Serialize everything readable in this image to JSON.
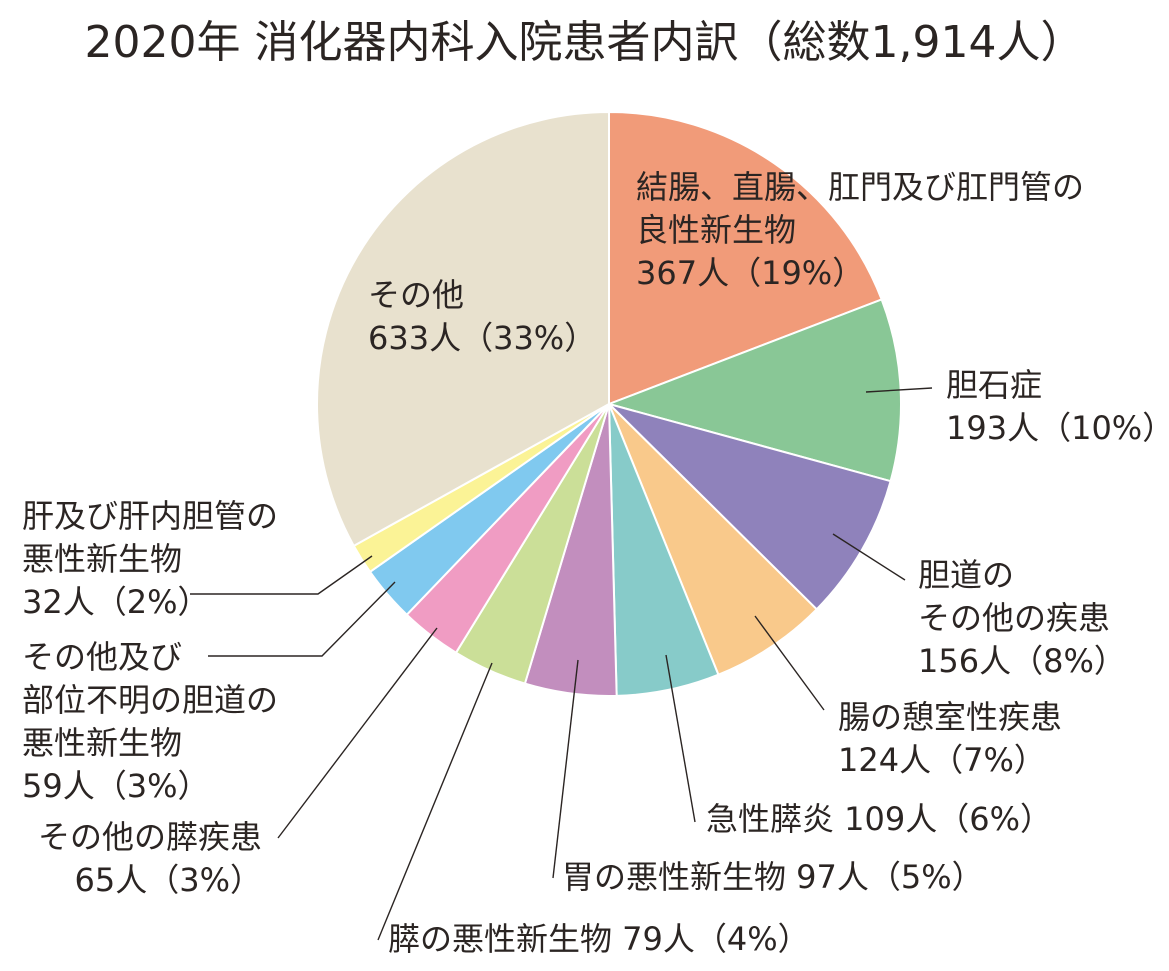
{
  "chart_data": {
    "type": "pie",
    "title": "2020年 消化器内科入院患者内訳（総数1,914人）",
    "colors": [
      "#f19b79",
      "#89c796",
      "#8f82bb",
      "#f9c98b",
      "#87cbc9",
      "#c28ebe",
      "#cbdf98",
      "#f09cc3",
      "#80c9ef",
      "#fbf396",
      "#e8e1ce"
    ],
    "slices": [
      {
        "label_lines": [
          "結腸、直腸、肛門及び肛門管の",
          "良性新生物",
          "367人（19%）"
        ],
        "value": 367,
        "percent": 19
      },
      {
        "label_lines": [
          "胆石症",
          "193人（10%）"
        ],
        "value": 193,
        "percent": 10
      },
      {
        "label_lines": [
          "胆道の",
          "その他の疾患",
          "156人（8%）"
        ],
        "value": 156,
        "percent": 8
      },
      {
        "label_lines": [
          "腸の憩室性疾患",
          "124人（7%）"
        ],
        "value": 124,
        "percent": 7
      },
      {
        "label_lines": [
          "急性膵炎 109人（6%）"
        ],
        "value": 109,
        "percent": 6
      },
      {
        "label_lines": [
          "胃の悪性新生物 97人（5%）"
        ],
        "value": 97,
        "percent": 5
      },
      {
        "label_lines": [
          "膵の悪性新生物 79人（4%）"
        ],
        "value": 79,
        "percent": 4
      },
      {
        "label_lines": [
          "その他の膵疾患",
          "65人（3%）"
        ],
        "value": 65,
        "percent": 3
      },
      {
        "label_lines": [
          "その他及び",
          "部位不明の胆道の",
          "悪性新生物",
          "59人（3%）"
        ],
        "value": 59,
        "percent": 3
      },
      {
        "label_lines": [
          "肝及び肝内胆管の",
          "悪性新生物",
          "32人（2%）"
        ],
        "value": 32,
        "percent": 2
      },
      {
        "label_lines": [
          "その他",
          "633人（33%）"
        ],
        "value": 633,
        "percent": 33
      }
    ]
  }
}
